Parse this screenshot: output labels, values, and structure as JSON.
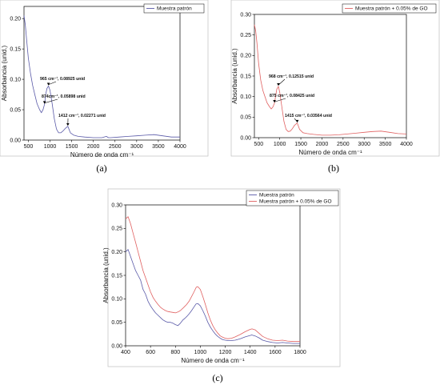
{
  "chart_data": [
    {
      "panel": "a",
      "type": "line",
      "caption": "(a)",
      "xlabel": "Número de onda cm⁻¹",
      "ylabel": "Absorbancia (unid.)",
      "xlim": [
        400,
        4000
      ],
      "ylim": [
        0,
        0.22
      ],
      "xticks": [
        500,
        1000,
        1500,
        2000,
        2500,
        3000,
        3500,
        4000
      ],
      "yticks": [
        0.0,
        0.05,
        0.1,
        0.15,
        0.2
      ],
      "ytick_labels": [
        "0.00",
        "0.05",
        "0.10",
        "0.15",
        "0.20"
      ],
      "legend_position": "top-right",
      "series": [
        {
          "name": "Muestra patrón",
          "color": "#5a5aa8",
          "x": [
            400,
            430,
            460,
            500,
            550,
            600,
            650,
            700,
            760,
            800,
            840,
            874,
            900,
            930,
            965,
            1000,
            1050,
            1100,
            1150,
            1200,
            1250,
            1300,
            1350,
            1412,
            1470,
            1550,
            1650,
            1800,
            2000,
            2200,
            2300,
            2350,
            2400,
            2600,
            2800,
            3000,
            3200,
            3400,
            3600,
            3800,
            4000
          ],
          "y": [
            0.205,
            0.19,
            0.165,
            0.135,
            0.11,
            0.09,
            0.075,
            0.06,
            0.05,
            0.045,
            0.05,
            0.059,
            0.075,
            0.085,
            0.089,
            0.082,
            0.06,
            0.035,
            0.018,
            0.012,
            0.012,
            0.015,
            0.019,
            0.0227,
            0.012,
            0.008,
            0.006,
            0.005,
            0.004,
            0.004,
            0.006,
            0.004,
            0.004,
            0.005,
            0.006,
            0.007,
            0.008,
            0.009,
            0.007,
            0.005,
            0.005
          ]
        }
      ],
      "annotations": [
        {
          "text": "965 cm⁻¹, 0.08925 unid",
          "x": 965,
          "y": 0.08925
        },
        {
          "text": "874cm⁻¹, 0.05898 unid",
          "x": 874,
          "y": 0.05898
        },
        {
          "text": "1412 cm⁻¹, 0.02271 unid",
          "x": 1412,
          "y": 0.02271
        }
      ]
    },
    {
      "panel": "b",
      "type": "line",
      "caption": "(b)",
      "xlabel": "Número de onda cm⁻¹",
      "ylabel": "Absorbancia (unid.)",
      "xlim": [
        400,
        4000
      ],
      "ylim": [
        0,
        0.3
      ],
      "xticks": [
        500,
        1000,
        1500,
        2000,
        2500,
        3000,
        3500,
        4000
      ],
      "yticks": [
        0.0,
        0.05,
        0.1,
        0.15,
        0.2,
        0.25,
        0.3
      ],
      "ytick_labels": [
        "0.00",
        "0.05",
        "0.10",
        "0.15",
        "0.20",
        "0.25",
        "0.30"
      ],
      "legend_position": "top-right",
      "series": [
        {
          "name": "Muestra patrón + 0.05% de GO",
          "color": "#e06060",
          "x": [
            400,
            430,
            460,
            500,
            550,
            600,
            650,
            700,
            760,
            800,
            840,
            875,
            900,
            930,
            968,
            1000,
            1050,
            1100,
            1150,
            1200,
            1250,
            1300,
            1350,
            1415,
            1470,
            1550,
            1650,
            1800,
            2000,
            2200,
            2400,
            2600,
            2800,
            3000,
            3200,
            3400,
            3600,
            3800,
            4000
          ],
          "y": [
            0.275,
            0.26,
            0.23,
            0.18,
            0.14,
            0.115,
            0.1,
            0.085,
            0.075,
            0.07,
            0.075,
            0.084,
            0.1,
            0.118,
            0.125,
            0.11,
            0.075,
            0.04,
            0.02,
            0.015,
            0.016,
            0.022,
            0.03,
            0.0356,
            0.02,
            0.012,
            0.01,
            0.008,
            0.006,
            0.006,
            0.007,
            0.009,
            0.011,
            0.013,
            0.015,
            0.016,
            0.013,
            0.01,
            0.009
          ]
        }
      ],
      "annotations": [
        {
          "text": "968 cm⁻¹, 0.12515 unid",
          "x": 968,
          "y": 0.12515
        },
        {
          "text": "875 cm⁻¹, 0.08425 unid",
          "x": 875,
          "y": 0.08425
        },
        {
          "text": "1415 cm⁻¹, 0.03564 unid",
          "x": 1415,
          "y": 0.03564
        }
      ]
    },
    {
      "panel": "c",
      "type": "line",
      "caption": "(c)",
      "xlabel": "Número de onda cm⁻¹",
      "ylabel": "Absorbancia (unid.)",
      "xlim": [
        400,
        1800
      ],
      "ylim": [
        0,
        0.3
      ],
      "xticks": [
        400,
        600,
        800,
        1000,
        1200,
        1400,
        1600,
        1800
      ],
      "yticks": [
        0.0,
        0.05,
        0.1,
        0.15,
        0.2,
        0.25,
        0.3
      ],
      "ytick_labels": [
        "0.00",
        "0.05",
        "0.10",
        "0.15",
        "0.20",
        "0.25",
        "0.30"
      ],
      "legend_position": "top-right",
      "series": [
        {
          "name": "Muestra patrón",
          "color": "#5a5aa8",
          "x": [
            400,
            420,
            440,
            460,
            480,
            500,
            520,
            540,
            560,
            580,
            600,
            620,
            640,
            660,
            680,
            700,
            720,
            740,
            760,
            780,
            800,
            820,
            840,
            860,
            874,
            890,
            910,
            930,
            950,
            965,
            980,
            1000,
            1020,
            1040,
            1060,
            1080,
            1100,
            1120,
            1140,
            1160,
            1180,
            1200,
            1220,
            1250,
            1280,
            1320,
            1360,
            1400,
            1412,
            1440,
            1470,
            1500,
            1540,
            1580,
            1620,
            1660,
            1700,
            1750,
            1800
          ],
          "y": [
            0.2,
            0.205,
            0.19,
            0.175,
            0.16,
            0.15,
            0.14,
            0.12,
            0.11,
            0.095,
            0.085,
            0.077,
            0.07,
            0.065,
            0.06,
            0.055,
            0.052,
            0.05,
            0.05,
            0.048,
            0.045,
            0.043,
            0.048,
            0.055,
            0.058,
            0.062,
            0.068,
            0.075,
            0.083,
            0.089,
            0.09,
            0.085,
            0.075,
            0.063,
            0.05,
            0.04,
            0.032,
            0.025,
            0.02,
            0.016,
            0.013,
            0.012,
            0.011,
            0.011,
            0.012,
            0.015,
            0.019,
            0.022,
            0.023,
            0.021,
            0.017,
            0.012,
            0.009,
            0.007,
            0.006,
            0.007,
            0.006,
            0.005,
            0.005
          ]
        },
        {
          "name": "Muestra patrón + 0.05% de GO",
          "color": "#e06060",
          "x": [
            400,
            420,
            440,
            460,
            480,
            500,
            520,
            540,
            560,
            580,
            600,
            620,
            640,
            660,
            680,
            700,
            720,
            740,
            760,
            780,
            800,
            820,
            840,
            860,
            875,
            890,
            910,
            930,
            950,
            968,
            980,
            1000,
            1020,
            1040,
            1060,
            1080,
            1100,
            1120,
            1140,
            1160,
            1180,
            1200,
            1220,
            1250,
            1280,
            1320,
            1360,
            1400,
            1415,
            1440,
            1470,
            1500,
            1540,
            1580,
            1620,
            1660,
            1700,
            1750,
            1800
          ],
          "y": [
            0.27,
            0.275,
            0.26,
            0.24,
            0.22,
            0.2,
            0.18,
            0.16,
            0.145,
            0.13,
            0.115,
            0.103,
            0.095,
            0.088,
            0.082,
            0.078,
            0.075,
            0.073,
            0.072,
            0.071,
            0.07,
            0.072,
            0.075,
            0.08,
            0.084,
            0.088,
            0.095,
            0.105,
            0.115,
            0.125,
            0.126,
            0.12,
            0.105,
            0.088,
            0.07,
            0.055,
            0.043,
            0.034,
            0.027,
            0.021,
            0.018,
            0.016,
            0.015,
            0.016,
            0.019,
            0.024,
            0.03,
            0.035,
            0.036,
            0.034,
            0.027,
            0.02,
            0.015,
            0.012,
            0.011,
            0.012,
            0.01,
            0.009,
            0.009
          ]
        }
      ]
    }
  ]
}
